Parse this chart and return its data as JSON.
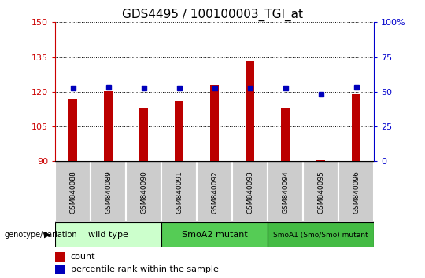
{
  "title": "GDS4495 / 100100003_TGI_at",
  "samples": [
    "GSM840088",
    "GSM840089",
    "GSM840090",
    "GSM840091",
    "GSM840092",
    "GSM840093",
    "GSM840094",
    "GSM840095",
    "GSM840096"
  ],
  "counts": [
    117.0,
    120.2,
    113.0,
    116.0,
    123.0,
    133.0,
    113.0,
    90.5,
    119.0
  ],
  "percentiles": [
    52.5,
    53.5,
    52.5,
    52.5,
    52.5,
    52.5,
    52.5,
    48.0,
    53.5
  ],
  "ylim_left": [
    90,
    150
  ],
  "ylim_right": [
    0,
    100
  ],
  "yticks_left": [
    90,
    105,
    120,
    135,
    150
  ],
  "ytick_labels_left": [
    "90",
    "105",
    "120",
    "135",
    "150"
  ],
  "yticks_right": [
    0,
    25,
    50,
    75,
    100
  ],
  "ytick_labels_right": [
    "0",
    "25",
    "50",
    "75",
    "100%"
  ],
  "bar_color": "#bb0000",
  "marker_color": "#0000bb",
  "bar_width": 0.25,
  "groups": [
    {
      "label": "wild type",
      "samples": [
        0,
        1,
        2
      ],
      "color": "#ccffcc"
    },
    {
      "label": "SmoA2 mutant",
      "samples": [
        3,
        4,
        5
      ],
      "color": "#55cc55"
    },
    {
      "label": "SmoA1 (Smo/Smo) mutant",
      "samples": [
        6,
        7,
        8
      ],
      "color": "#44bb44"
    }
  ],
  "group_label": "genotype/variation",
  "legend_count_label": "count",
  "legend_pct_label": "percentile rank within the sample",
  "title_fontsize": 11,
  "axis_color_left": "#cc0000",
  "axis_color_right": "#0000cc",
  "tick_label_gray": "#cccccc",
  "bg_color": "#ffffff"
}
